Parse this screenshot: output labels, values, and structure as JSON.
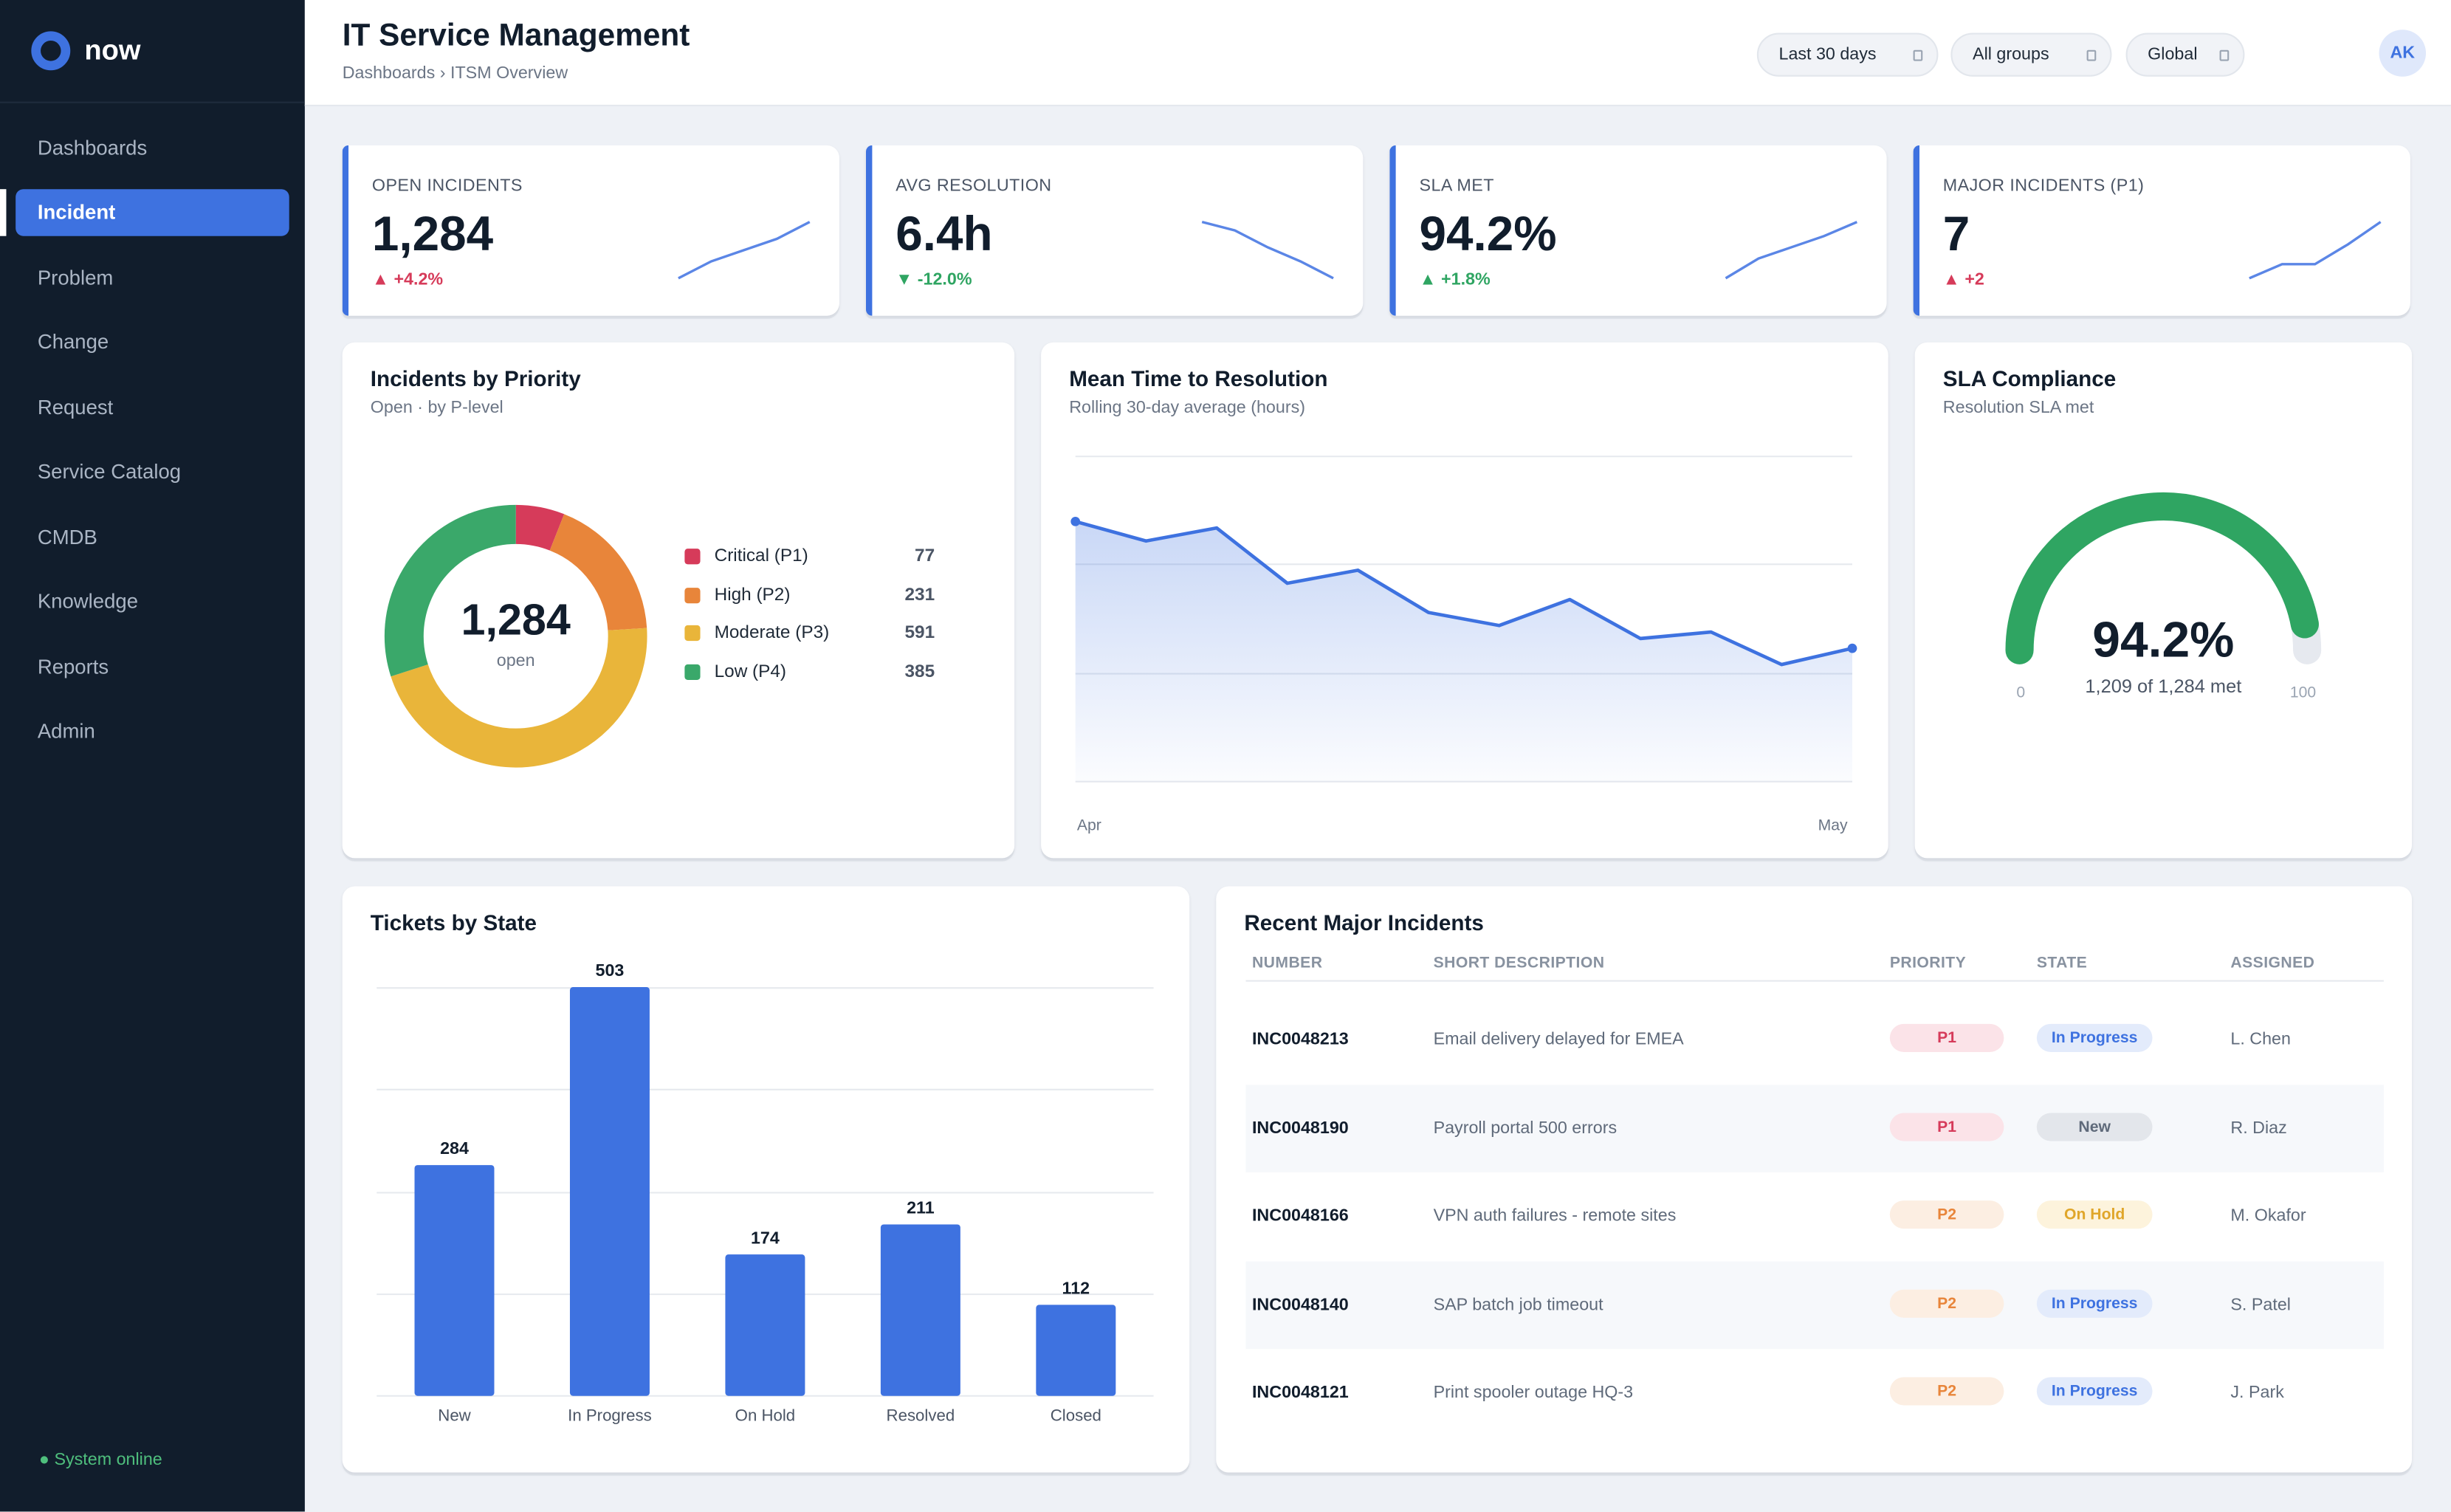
{
  "app": {
    "brand": "now"
  },
  "sidebar": {
    "items": [
      {
        "label": "Dashboards"
      },
      {
        "label": "Incident"
      },
      {
        "label": "Problem"
      },
      {
        "label": "Change"
      },
      {
        "label": "Request"
      },
      {
        "label": "Service Catalog"
      },
      {
        "label": "CMDB"
      },
      {
        "label": "Knowledge"
      },
      {
        "label": "Reports"
      },
      {
        "label": "Admin"
      }
    ],
    "active_item": "Incident",
    "status": "● System online"
  },
  "header": {
    "title": "IT Service Management",
    "breadcrumb": "Dashboards › ITSM Overview",
    "filters": [
      "Last 30 days",
      "All groups",
      "Global"
    ],
    "avatar_initials": "AK"
  },
  "kpis": [
    {
      "label": "OPEN INCIDENTS",
      "value": "1,284",
      "delta": "▲ +4.2%",
      "spark": [
        0.0,
        0.3,
        0.5,
        0.7,
        1.0
      ]
    },
    {
      "label": "AVG RESOLUTION",
      "value": "6.4h",
      "delta": "▼ -12.0%",
      "spark": [
        1.0,
        0.85,
        0.55,
        0.3,
        0.0
      ]
    },
    {
      "label": "SLA MET",
      "value": "94.2%",
      "delta": "▲ +1.8%",
      "spark": [
        0.0,
        0.35,
        0.55,
        0.75,
        1.0
      ]
    },
    {
      "label": "MAJOR INCIDENTS (P1)",
      "value": "7",
      "delta": "▲ +2",
      "spark": [
        0.0,
        0.25,
        0.25,
        0.6,
        1.0
      ]
    }
  ],
  "priority": {
    "title": "Incidents by Priority",
    "subtitle": "Open · by P-level",
    "total": "1,284",
    "total_label": "open",
    "items": [
      {
        "label": "Critical (P1)",
        "value": 77,
        "color": "#d63b5a"
      },
      {
        "label": "High (P2)",
        "value": 231,
        "color": "#e8853a"
      },
      {
        "label": "Moderate (P3)",
        "value": 591,
        "color": "#e9b53a"
      },
      {
        "label": "Low (P4)",
        "value": 385,
        "color": "#3aa86a"
      }
    ]
  },
  "mttr": {
    "title": "Mean Time to Resolution",
    "subtitle": "Rolling 30-day average (hours)",
    "x_start": "Apr",
    "x_end": "May",
    "values": [
      8.0,
      7.4,
      7.8,
      6.1,
      6.5,
      5.2,
      4.8,
      5.6,
      4.4,
      4.6,
      3.6,
      4.1
    ]
  },
  "sla": {
    "title": "SLA Compliance",
    "subtitle": "Resolution SLA met",
    "value": "94.2%",
    "fraction": 0.942,
    "detail": "1,209 of 1,284 met",
    "min": "0",
    "max": "100"
  },
  "chart_data": {
    "type": "bar",
    "title": "Tickets by State",
    "categories": [
      "New",
      "In Progress",
      "On Hold",
      "Resolved",
      "Closed"
    ],
    "values": [
      284,
      503,
      174,
      211,
      112
    ],
    "ylim": [
      0,
      550
    ]
  },
  "incidents": {
    "title": "Recent Major Incidents",
    "columns": [
      "NUMBER",
      "SHORT DESCRIPTION",
      "PRIORITY",
      "STATE",
      "ASSIGNED"
    ],
    "rows": [
      {
        "number": "INC0048213",
        "desc": "Email delivery delayed for EMEA",
        "priority": "P1",
        "state": "In Progress",
        "assigned": "L. Chen"
      },
      {
        "number": "INC0048190",
        "desc": "Payroll portal 500 errors",
        "priority": "P1",
        "state": "New",
        "assigned": "R. Diaz"
      },
      {
        "number": "INC0048166",
        "desc": "VPN auth failures - remote sites",
        "priority": "P2",
        "state": "On Hold",
        "assigned": "M. Okafor"
      },
      {
        "number": "INC0048140",
        "desc": "SAP batch job timeout",
        "priority": "P2",
        "state": "In Progress",
        "assigned": "S. Patel"
      },
      {
        "number": "INC0048121",
        "desc": "Print spooler outage HQ-3",
        "priority": "P2",
        "state": "In Progress",
        "assigned": "J. Park"
      }
    ]
  },
  "colors": {
    "accent": "#3e72e0",
    "sidebar": "#111d2c",
    "danger": "#d63b5a",
    "success": "#2fa562",
    "gauge": "#2fa562"
  }
}
